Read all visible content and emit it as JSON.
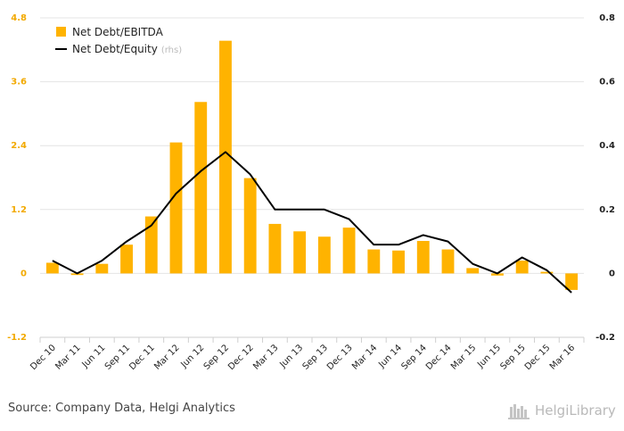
{
  "chart_data": {
    "type": "bar",
    "categories": [
      "Dec 10",
      "Mar 11",
      "Jun 11",
      "Sep 11",
      "Dec 11",
      "Mar 12",
      "Jun 12",
      "Sep 12",
      "Dec 12",
      "Mar 13",
      "Jun 13",
      "Sep 13",
      "Dec 13",
      "Mar 14",
      "Jun 14",
      "Sep 14",
      "Dec 14",
      "Mar 15",
      "Jun 15",
      "Sep 15",
      "Dec 15",
      "Mar 16"
    ],
    "series": [
      {
        "name": "Net Debt/EBITDA",
        "type": "bar",
        "axis": "left",
        "color": "#ffb300",
        "values": [
          0.2,
          -0.03,
          0.18,
          0.54,
          1.07,
          2.46,
          3.22,
          4.37,
          1.79,
          0.93,
          0.79,
          0.69,
          0.86,
          0.45,
          0.43,
          0.61,
          0.45,
          0.1,
          -0.04,
          0.24,
          0.03,
          -0.31
        ]
      },
      {
        "name": "Net Debt/Equity",
        "legend_suffix": "(rhs)",
        "type": "line",
        "axis": "right",
        "color": "#000000",
        "values": [
          0.04,
          0.0,
          0.04,
          0.1,
          0.15,
          0.25,
          0.32,
          0.38,
          0.31,
          0.2,
          0.2,
          0.2,
          0.17,
          0.09,
          0.09,
          0.12,
          0.1,
          0.03,
          0.0,
          0.05,
          0.01,
          -0.06
        ]
      }
    ],
    "y_left": {
      "ylim": [
        -1.2,
        4.8
      ],
      "ticks": [
        "-1.2",
        "0",
        "1.2",
        "2.4",
        "3.6",
        "4.8"
      ]
    },
    "y_right": {
      "ylim": [
        -0.2,
        0.8
      ],
      "ticks": [
        "-0.2",
        "0",
        "0.2",
        "0.4",
        "0.6",
        "0.8"
      ]
    },
    "grid": true,
    "legend_position": "top-left",
    "title": "",
    "xlabel": "",
    "ylabel": ""
  },
  "footer": {
    "source": "Source: Company Data, Helgi Analytics",
    "brand": "HelgiLibrary"
  }
}
